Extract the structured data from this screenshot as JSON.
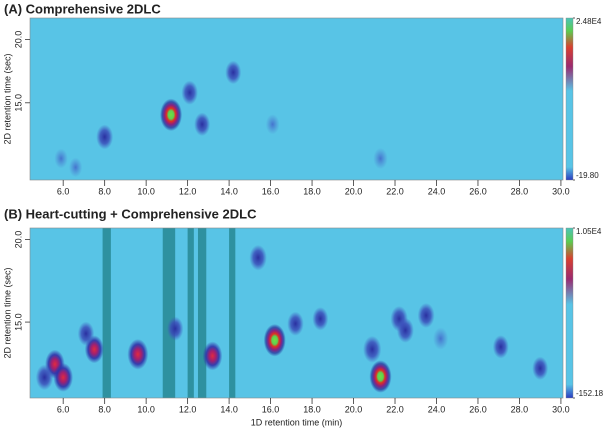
{
  "chart_data": [
    {
      "type": "heatmap",
      "title": "(A) Comprehensive  2DLC",
      "y_label": "2D retention time (sec)",
      "xlim": [
        4.4,
        30.1
      ],
      "ylim": [
        8.9,
        21.7
      ],
      "xticks": [
        {
          "value": 6,
          "label": "6.0"
        },
        {
          "value": 8,
          "label": "8.0"
        },
        {
          "value": 10,
          "label": "10.0"
        },
        {
          "value": 12,
          "label": "12.0"
        },
        {
          "value": 14,
          "label": "14.0"
        },
        {
          "value": 16,
          "label": "16.0"
        },
        {
          "value": 18,
          "label": "18.0"
        },
        {
          "value": 20,
          "label": "20.0"
        },
        {
          "value": 22,
          "label": "22.0"
        },
        {
          "value": 24,
          "label": "24.0"
        },
        {
          "value": 26,
          "label": "26.0"
        },
        {
          "value": 28,
          "label": "28.0"
        },
        {
          "value": 30,
          "label": "30.0"
        }
      ],
      "yticks": [
        {
          "value": 15,
          "label": "15.0"
        },
        {
          "value": 20,
          "label": "20.0"
        }
      ],
      "clim": [
        -19.8,
        24800
      ],
      "cticks": [
        {
          "value": -19.8,
          "label": "-19.80"
        },
        {
          "value": 24800,
          "label": "2.48E4"
        }
      ],
      "x": [
        11.2,
        8.0,
        12.1,
        12.7,
        14.2,
        21.3,
        16.1,
        5.9,
        6.6
      ],
      "y": [
        14.05,
        12.3,
        15.8,
        13.3,
        17.4,
        10.6,
        13.3,
        10.6,
        9.9
      ],
      "values": [
        24800,
        6000,
        5000,
        4000,
        4000,
        1500,
        800,
        600,
        500
      ]
    },
    {
      "type": "heatmap",
      "title": "(B) Heart-cutting + Comprehensive  2DLC",
      "x_label": "1D retention time (min)",
      "y_label": "2D retention time (sec)",
      "xlim": [
        4.4,
        30.1
      ],
      "ylim": [
        10.4,
        20.7
      ],
      "xticks": [
        {
          "value": 6,
          "label": "6.0"
        },
        {
          "value": 8,
          "label": "8.0"
        },
        {
          "value": 10,
          "label": "10.0"
        },
        {
          "value": 12,
          "label": "12.0"
        },
        {
          "value": 14,
          "label": "14.0"
        },
        {
          "value": 16,
          "label": "16.0"
        },
        {
          "value": 18,
          "label": "18.0"
        },
        {
          "value": 20,
          "label": "20.0"
        },
        {
          "value": 22,
          "label": "22.0"
        },
        {
          "value": 24,
          "label": "24.0"
        },
        {
          "value": 26,
          "label": "26.0"
        },
        {
          "value": 28,
          "label": "28.0"
        },
        {
          "value": 30,
          "label": "30.0"
        }
      ],
      "yticks": [
        {
          "value": 15,
          "label": "15.0"
        },
        {
          "value": 20,
          "label": "20.0"
        }
      ],
      "clim": [
        -152.18,
        10500
      ],
      "cticks": [
        {
          "value": -152.18,
          "label": "-152.18"
        },
        {
          "value": 10500,
          "label": "1.05E4"
        }
      ],
      "cut_windows": [
        [
          7.9,
          8.3
        ],
        [
          10.8,
          11.4
        ],
        [
          12.0,
          12.3
        ],
        [
          12.5,
          12.9
        ],
        [
          14.0,
          14.3
        ]
      ],
      "x": [
        5.6,
        6.0,
        7.5,
        9.6,
        7.1,
        13.2,
        15.4,
        16.2,
        21.3,
        20.9,
        22.2,
        22.5,
        23.5,
        18.4,
        17.2,
        27.1,
        29.0,
        24.2,
        5.1,
        11.4
      ],
      "y": [
        12.45,
        11.65,
        13.35,
        13.05,
        14.3,
        12.95,
        18.9,
        13.9,
        11.7,
        13.35,
        15.2,
        14.5,
        15.4,
        15.2,
        14.9,
        13.5,
        12.2,
        14.0,
        11.65,
        14.6
      ],
      "values": [
        6000,
        6000,
        5000,
        8000,
        2000,
        6000,
        3000,
        10500,
        10500,
        4000,
        3000,
        2500,
        2500,
        1500,
        2000,
        1500,
        1500,
        1000,
        3000,
        2000
      ]
    }
  ]
}
